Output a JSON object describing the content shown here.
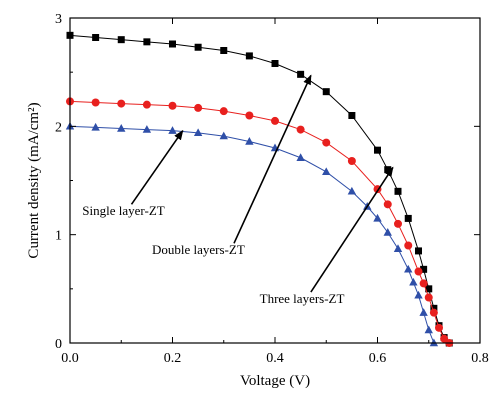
{
  "chart_data": {
    "type": "scatter",
    "title": "",
    "xlabel": "Voltage (V)",
    "ylabel": "Current density (mA/cm²)",
    "xlim": [
      0,
      0.8
    ],
    "ylim": [
      0,
      3
    ],
    "xticks": [
      0.0,
      0.2,
      0.4,
      0.6,
      0.8
    ],
    "xtick_labels": [
      "0.0",
      "0.2",
      "0.4",
      "0.6",
      "0.8"
    ],
    "yticks": [
      0,
      1,
      2,
      3
    ],
    "ytick_labels": [
      "0",
      "1",
      "2",
      "3"
    ],
    "grid": false,
    "legend": "none",
    "series": [
      {
        "marker": "square",
        "color": "#000000",
        "x": [
          0.0,
          0.05,
          0.1,
          0.15,
          0.2,
          0.25,
          0.3,
          0.35,
          0.4,
          0.45,
          0.5,
          0.55,
          0.6,
          0.62,
          0.64,
          0.66,
          0.68,
          0.69,
          0.7,
          0.71,
          0.72,
          0.73,
          0.74
        ],
        "y": [
          2.84,
          2.82,
          2.8,
          2.78,
          2.76,
          2.73,
          2.7,
          2.65,
          2.58,
          2.48,
          2.32,
          2.1,
          1.78,
          1.6,
          1.4,
          1.15,
          0.85,
          0.68,
          0.5,
          0.32,
          0.16,
          0.05,
          0.0
        ]
      },
      {
        "marker": "circle",
        "color": "#e8201e",
        "x": [
          0.0,
          0.05,
          0.1,
          0.15,
          0.2,
          0.25,
          0.3,
          0.35,
          0.4,
          0.45,
          0.5,
          0.55,
          0.6,
          0.62,
          0.64,
          0.66,
          0.68,
          0.69,
          0.7,
          0.71,
          0.72,
          0.73,
          0.74
        ],
        "y": [
          2.23,
          2.22,
          2.21,
          2.2,
          2.19,
          2.17,
          2.14,
          2.1,
          2.05,
          1.97,
          1.85,
          1.68,
          1.42,
          1.28,
          1.1,
          0.9,
          0.66,
          0.55,
          0.42,
          0.28,
          0.14,
          0.04,
          0.0
        ]
      },
      {
        "marker": "triangle",
        "color": "#2f4fa8",
        "x": [
          0.0,
          0.05,
          0.1,
          0.15,
          0.2,
          0.25,
          0.3,
          0.35,
          0.4,
          0.45,
          0.5,
          0.55,
          0.58,
          0.6,
          0.62,
          0.64,
          0.66,
          0.67,
          0.68,
          0.69,
          0.7,
          0.71
        ],
        "y": [
          2.0,
          1.99,
          1.98,
          1.97,
          1.96,
          1.94,
          1.91,
          1.86,
          1.8,
          1.71,
          1.58,
          1.4,
          1.26,
          1.15,
          1.02,
          0.87,
          0.68,
          0.56,
          0.44,
          0.28,
          0.12,
          0.0
        ]
      }
    ],
    "annotations": [
      {
        "text": "Single layer-ZT",
        "text_at": [
          0.024,
          1.18
        ],
        "arrow_from": [
          0.12,
          1.28
        ],
        "arrow_to": [
          0.22,
          1.96
        ]
      },
      {
        "text": "Double layers-ZT",
        "text_at": [
          0.16,
          0.82
        ],
        "arrow_from": [
          0.32,
          0.92
        ],
        "arrow_to": [
          0.47,
          2.47
        ]
      },
      {
        "text": "Three layers-ZT",
        "text_at": [
          0.37,
          0.37
        ],
        "arrow_from": [
          0.47,
          0.47
        ],
        "arrow_to": [
          0.63,
          1.62
        ]
      }
    ]
  }
}
